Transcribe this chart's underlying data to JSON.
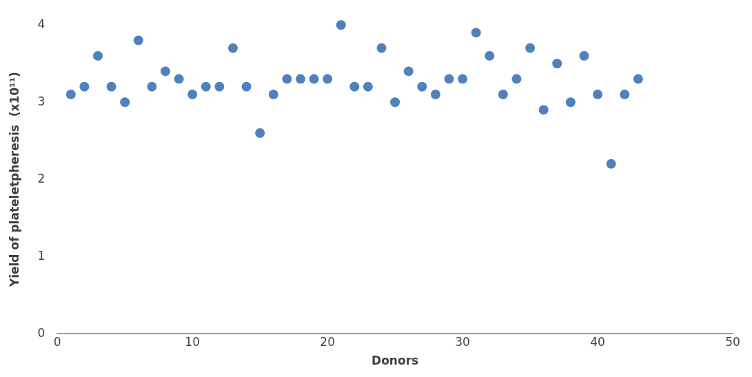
{
  "chart_data": {
    "type": "scatter",
    "xlabel": "Donors",
    "ylabel": "Yield of plateletpheresis  (x10¹¹)",
    "x": [
      1,
      2,
      3,
      4,
      5,
      6,
      7,
      8,
      9,
      10,
      11,
      12,
      13,
      14,
      15,
      16,
      17,
      18,
      19,
      20,
      21,
      22,
      23,
      24,
      25,
      26,
      27,
      28,
      29,
      30,
      31,
      32,
      33,
      34,
      35,
      36,
      37,
      38,
      39,
      40,
      41,
      42,
      43
    ],
    "series": [
      {
        "color": "#4f81bd",
        "values": [
          3.1,
          3.2,
          3.6,
          3.2,
          3.0,
          3.8,
          3.2,
          3.4,
          3.3,
          3.1,
          3.2,
          3.2,
          3.7,
          3.2,
          2.6,
          3.1,
          3.3,
          3.3,
          3.3,
          3.3,
          4.0,
          3.2,
          3.2,
          3.7,
          3.0,
          3.4,
          3.2,
          3.1,
          3.3,
          3.3,
          3.9,
          3.6,
          3.1,
          3.3,
          3.7,
          2.9,
          3.5,
          3.0,
          3.6,
          3.1,
          2.2,
          3.1,
          3.3
        ]
      }
    ],
    "xlim": [
      0,
      50
    ],
    "xticks": [
      0,
      10,
      20,
      30,
      40,
      50
    ],
    "ylim": [
      0,
      4
    ],
    "yticks": [
      0,
      1,
      2,
      3,
      4
    ],
    "grid": false,
    "legend": false,
    "marker": "circle"
  }
}
